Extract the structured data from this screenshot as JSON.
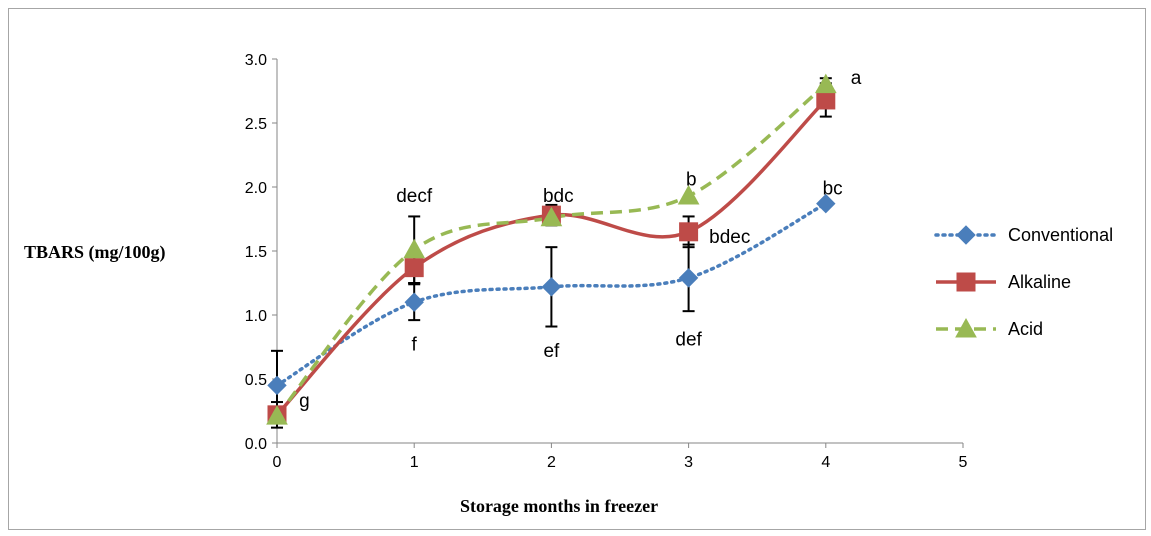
{
  "chart_data": {
    "type": "line",
    "xlabel": "Storage months in freezer",
    "ylabel": "TBARS (mg/100g)",
    "xlim": [
      0,
      5
    ],
    "ylim": [
      0,
      3
    ],
    "x_ticks": [
      "0",
      "1",
      "2",
      "3",
      "4",
      "5"
    ],
    "y_ticks": [
      "0.0",
      "0.5",
      "1.0",
      "1.5",
      "2.0",
      "2.5",
      "3.0"
    ],
    "grid": false,
    "legend_position": "right",
    "series": [
      {
        "name": "Conventional",
        "color": "#4a7ebb",
        "line_style": "dotted",
        "marker": "diamond",
        "x": [
          0,
          1,
          2,
          3,
          4
        ],
        "y": [
          0.45,
          1.1,
          1.22,
          1.29,
          1.87
        ],
        "error": [
          0.27,
          0.14,
          0.31,
          0.26,
          0.0
        ]
      },
      {
        "name": "Alkaline",
        "color": "#be4b48",
        "line_style": "solid",
        "marker": "square",
        "x": [
          0,
          1,
          2,
          3,
          4
        ],
        "y": [
          0.22,
          1.37,
          1.78,
          1.65,
          2.68
        ],
        "error": [
          0.1,
          0.12,
          0.08,
          0.12,
          0.13
        ]
      },
      {
        "name": "Acid",
        "color": "#98b954",
        "line_style": "dashed",
        "marker": "triangle",
        "x": [
          0,
          1,
          2,
          3,
          4
        ],
        "y": [
          0.21,
          1.51,
          1.76,
          1.93,
          2.8
        ],
        "error": [
          0.0,
          0.26,
          0.0,
          0.0,
          0.05
        ]
      }
    ],
    "annotations": [
      {
        "text": "g",
        "x": 0.2,
        "y": 0.33
      },
      {
        "text": "decf",
        "x": 1.0,
        "y": 1.93
      },
      {
        "text": "f",
        "x": 1.0,
        "y": 0.77
      },
      {
        "text": "bdc",
        "x": 2.05,
        "y": 1.93
      },
      {
        "text": "ef",
        "x": 2.0,
        "y": 0.72
      },
      {
        "text": "b",
        "x": 3.02,
        "y": 2.06
      },
      {
        "text": "bdec",
        "x": 3.3,
        "y": 1.61
      },
      {
        "text": "def",
        "x": 3.0,
        "y": 0.81
      },
      {
        "text": "bc",
        "x": 4.05,
        "y": 1.99
      },
      {
        "text": "a",
        "x": 4.22,
        "y": 2.85
      }
    ]
  }
}
